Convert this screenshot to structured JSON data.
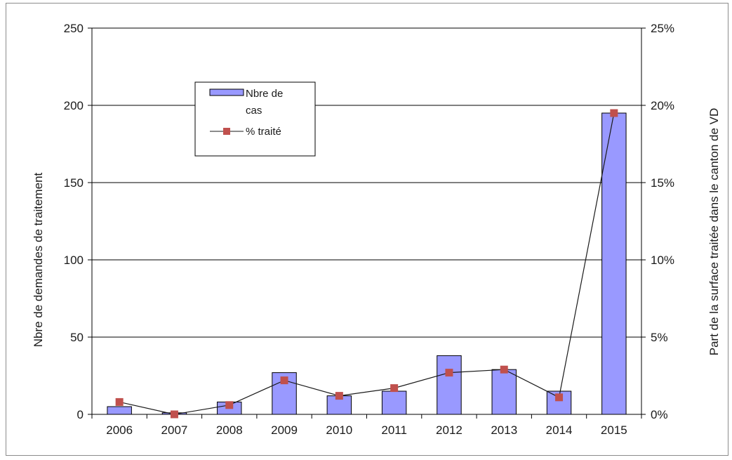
{
  "chart_data": {
    "type": "bar",
    "categories": [
      "2006",
      "2007",
      "2008",
      "2009",
      "2010",
      "2011",
      "2012",
      "2013",
      "2014",
      "2015"
    ],
    "series": [
      {
        "name": "Nbre de cas",
        "type": "bar",
        "axis": "left",
        "color": "#9999ff",
        "values": [
          5,
          1,
          8,
          27,
          12,
          15,
          38,
          29,
          15,
          195
        ]
      },
      {
        "name": "% traité",
        "type": "line",
        "axis": "right",
        "color": "#c0504d",
        "values": [
          0.8,
          0,
          0.6,
          2.2,
          1.2,
          1.7,
          2.7,
          2.9,
          1.1,
          19.5
        ]
      }
    ],
    "title": "",
    "ylabel": "Nbre de demandes de traitement",
    "y2label": "Part de la surface traitée dans le canton de VD",
    "ylim": [
      0,
      250
    ],
    "y2lim": [
      0,
      25
    ],
    "yticks": [
      "0",
      "50",
      "100",
      "150",
      "200",
      "250"
    ],
    "y2ticks": [
      "0%",
      "5%",
      "10%",
      "15%",
      "20%",
      "25%"
    ],
    "grid": true,
    "legend_placement": "upper-left"
  }
}
